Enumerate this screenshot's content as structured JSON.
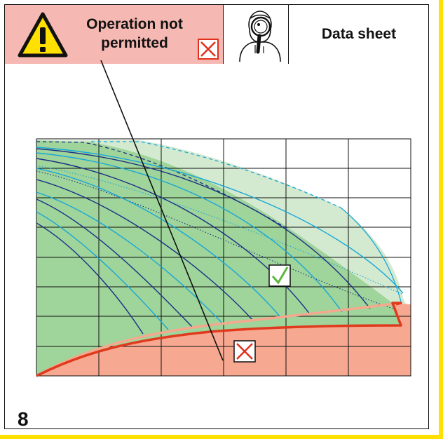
{
  "header": {
    "warning_line1": "Operation not",
    "warning_line2": "permitted",
    "title": "Data sheet"
  },
  "chart_data": {
    "type": "area",
    "title": "",
    "xlabel": "",
    "ylabel": "",
    "grid": true,
    "zones": [
      {
        "name": "permitted",
        "fill": "#9fd49a",
        "symbol": "check-icon"
      },
      {
        "name": "not permitted",
        "fill": "#f7a891",
        "symbol": "cross-icon"
      }
    ]
  },
  "page": {
    "number": "8"
  },
  "colors": {
    "warning_bg": "#f6b8b2",
    "warning_yellow": "#ffe000",
    "permitted_zone": "#9fd49a",
    "permitted_zone_light": "#d3ead0",
    "forbidden_zone": "#f7a891",
    "limit_line": "#e03a1d",
    "curve_dark": "#1b2f85",
    "curve_light": "#19a7d8",
    "check_green": "#5db63d",
    "cross_red": "#e1301b"
  },
  "icons": {
    "warning": "warning-triangle-icon",
    "inspector": "inspector-magnifier-icon",
    "cross": "cross-icon",
    "check": "check-icon"
  }
}
